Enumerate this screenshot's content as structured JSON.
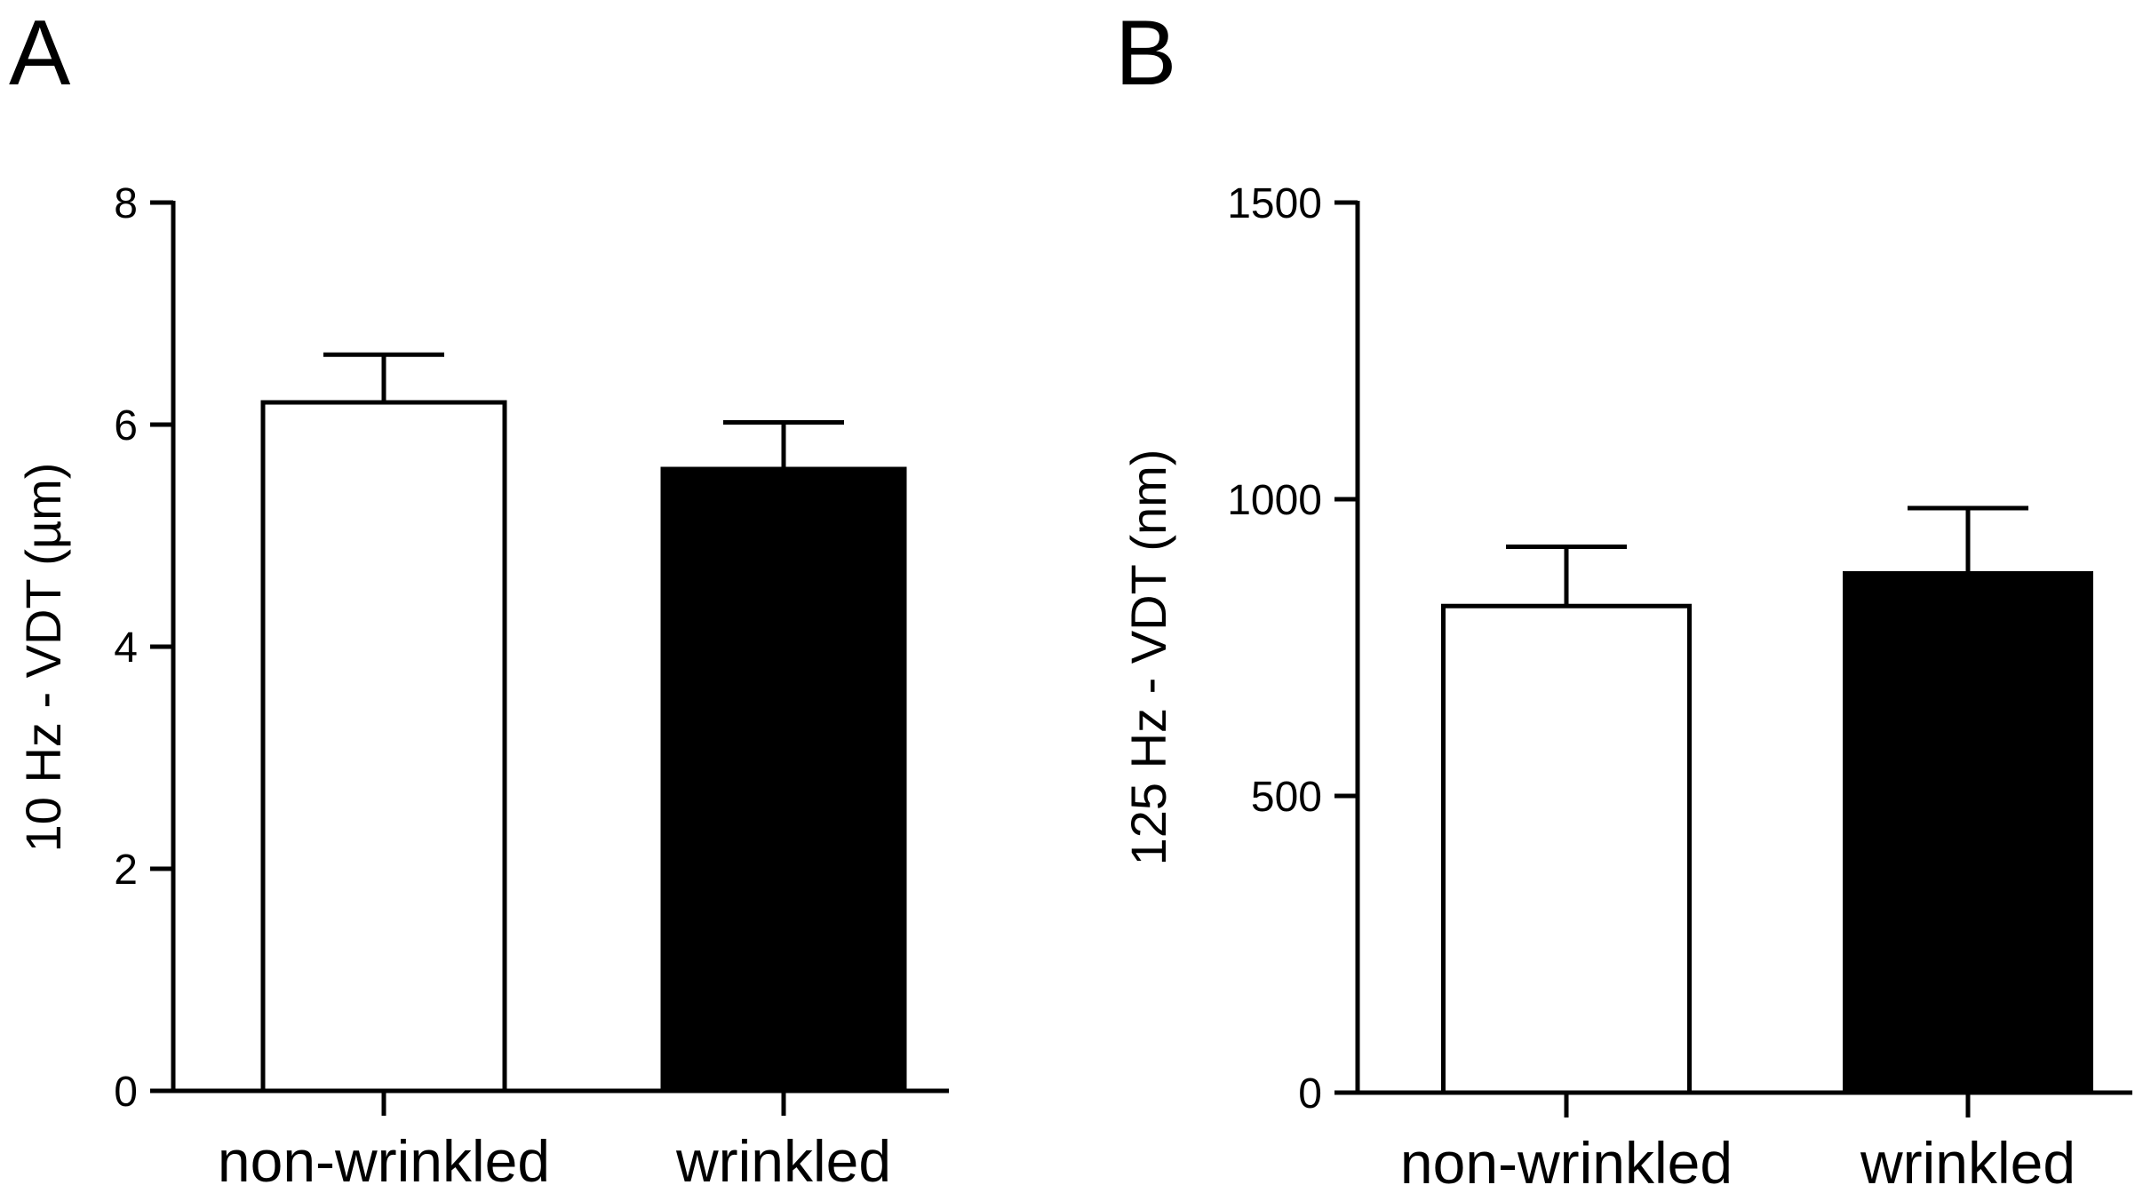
{
  "chart_data": [
    {
      "panel": "A",
      "type": "bar",
      "categories": [
        "non-wrinkled",
        "wrinkled"
      ],
      "values": [
        6.2,
        5.6
      ],
      "errors": [
        0.43,
        0.42
      ],
      "bar_colors": [
        "#ffffff",
        "#000000"
      ],
      "ylabel": "10 Hz - VDT (µm)",
      "ylim": [
        0,
        8
      ],
      "yticks": [
        "0",
        "2",
        "4",
        "6",
        "8"
      ],
      "ytick_values": [
        0,
        2,
        4,
        6,
        8
      ],
      "error_bars": "upper",
      "grid": false
    },
    {
      "panel": "B",
      "type": "bar",
      "categories": [
        "non-wrinkled",
        "wrinkled"
      ],
      "values": [
        820,
        875
      ],
      "errors": [
        100,
        110
      ],
      "bar_colors": [
        "#ffffff",
        "#000000"
      ],
      "ylabel": "125 Hz - VDT (nm)",
      "ylim": [
        0,
        1500
      ],
      "yticks": [
        "0",
        "500",
        "1000",
        "1500"
      ],
      "ytick_values": [
        0,
        500,
        1000,
        1500
      ],
      "error_bars": "upper",
      "grid": false
    }
  ]
}
